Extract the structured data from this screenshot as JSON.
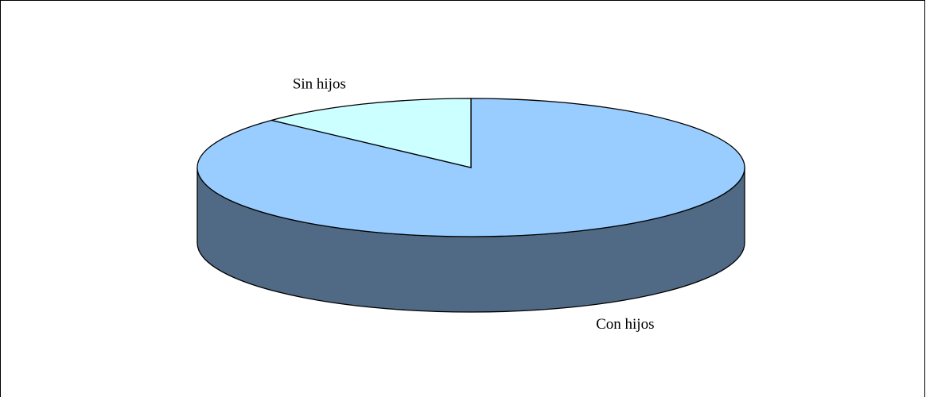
{
  "chart_data": {
    "type": "pie",
    "categories": [
      "Con hijos",
      "Sin hijos"
    ],
    "values": [
      87,
      13
    ],
    "colors": [
      "#99ccff",
      "#ccffff"
    ],
    "start_angle": 0,
    "direction": "clockwise",
    "three_d": true
  }
}
